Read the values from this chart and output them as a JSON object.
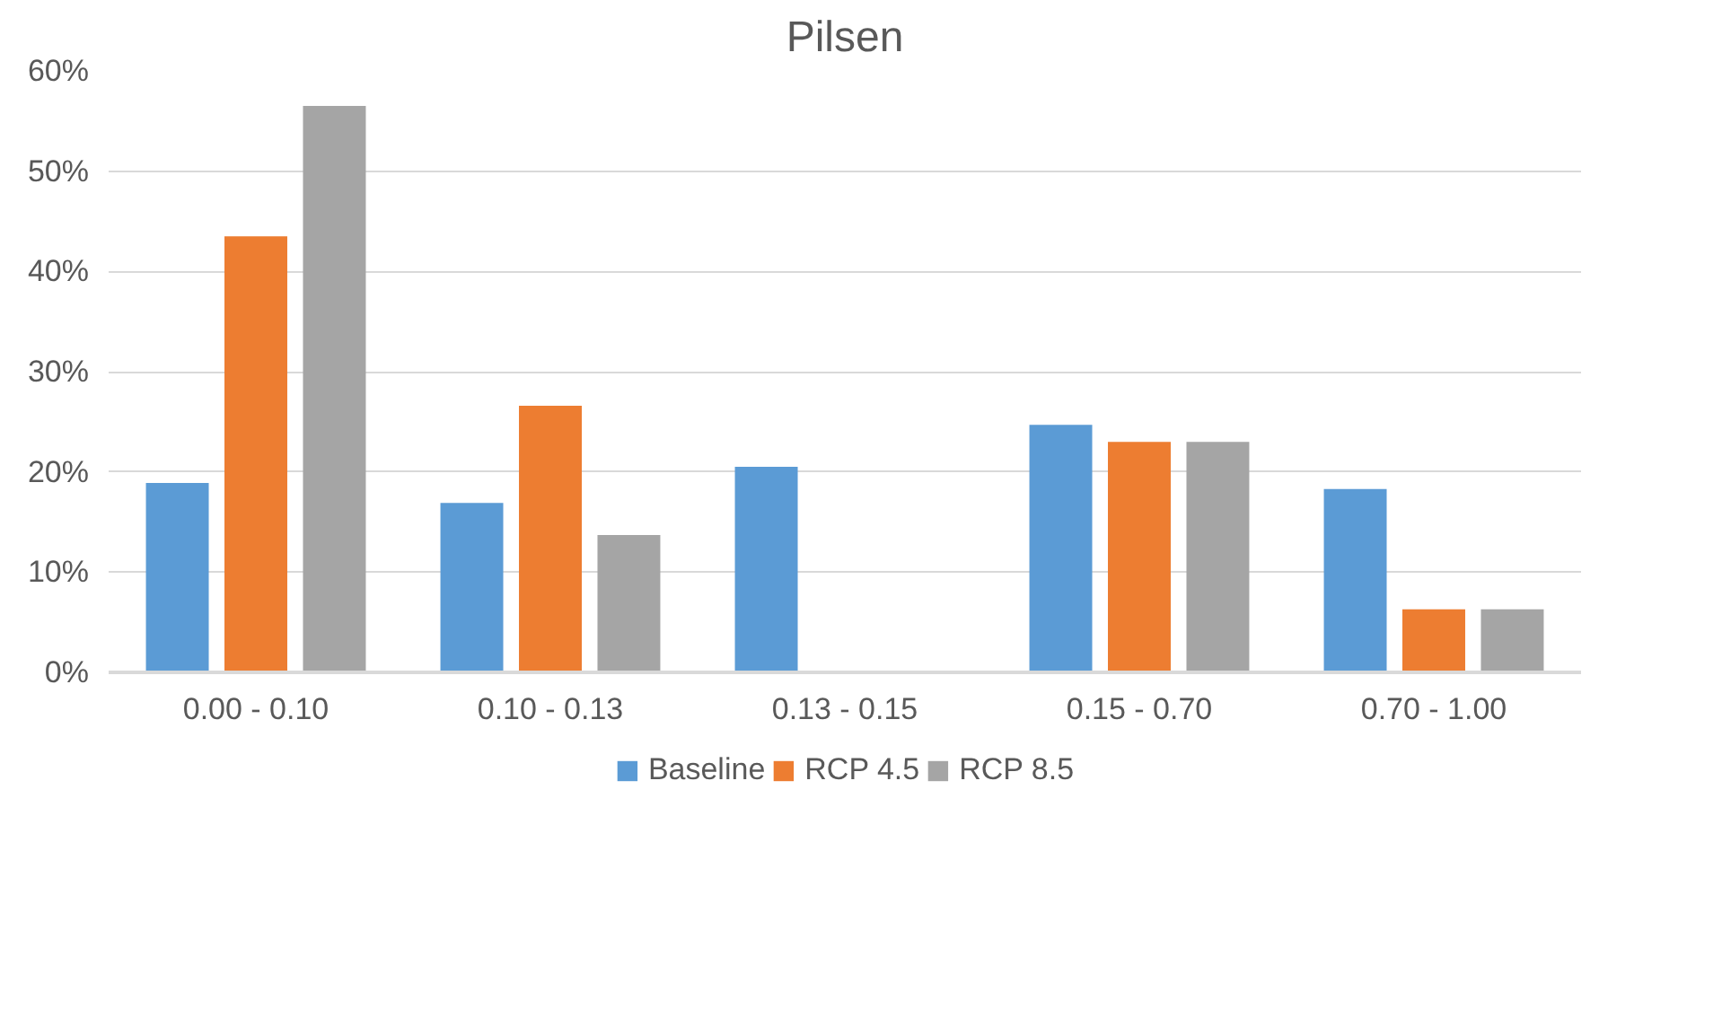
{
  "chart_data": {
    "type": "bar",
    "title": "Pilsen",
    "categories": [
      "0.00 - 0.10",
      "0.10 - 0.13",
      "0.13 - 0.15",
      "0.15 - 0.70",
      "0.70 - 1.00"
    ],
    "series": [
      {
        "name": "Baseline",
        "color": "#5b9bd5",
        "values": [
          18.9,
          16.9,
          20.5,
          24.7,
          18.3
        ]
      },
      {
        "name": "RCP 4.5",
        "color": "#ed7d31",
        "values": [
          43.5,
          26.6,
          0,
          23.0,
          6.3
        ]
      },
      {
        "name": "RCP 8.5",
        "color": "#a5a5a5",
        "values": [
          56.5,
          13.7,
          0,
          23.0,
          6.3
        ]
      }
    ],
    "ylim": [
      0,
      60
    ],
    "yticks": [
      {
        "value": 0,
        "label": "0%"
      },
      {
        "value": 10,
        "label": "10%"
      },
      {
        "value": 20,
        "label": "20%"
      },
      {
        "value": 30,
        "label": "30%"
      },
      {
        "value": 40,
        "label": "40%"
      },
      {
        "value": 50,
        "label": "50%"
      },
      {
        "value": 60,
        "label": "60%"
      }
    ],
    "grid": "y",
    "legend": "bottom"
  }
}
